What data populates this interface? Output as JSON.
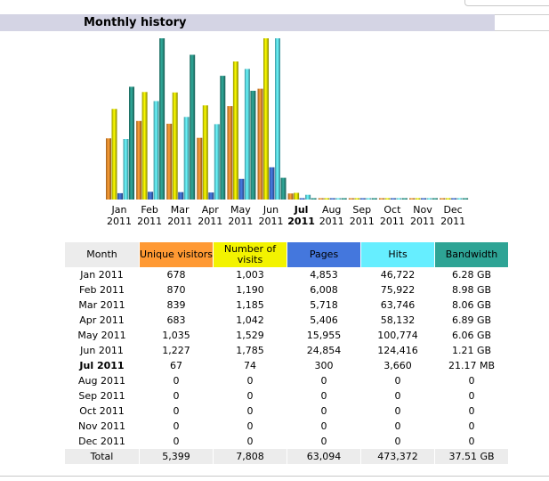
{
  "section_title": "Monthly history",
  "colors": {
    "visitors": "#ff9933",
    "visits": "#f3f300",
    "pages": "#4477dd",
    "hits": "#66eeff",
    "bandwidth": "#2ea495"
  },
  "chart_data": {
    "type": "bar",
    "categories": [
      {
        "month": "Jan",
        "year": "2011"
      },
      {
        "month": "Feb",
        "year": "2011"
      },
      {
        "month": "Mar",
        "year": "2011"
      },
      {
        "month": "Apr",
        "year": "2011"
      },
      {
        "month": "May",
        "year": "2011"
      },
      {
        "month": "Jun",
        "year": "2011"
      },
      {
        "month": "Jul",
        "year": "2011",
        "current": true
      },
      {
        "month": "Aug",
        "year": "2011"
      },
      {
        "month": "Sep",
        "year": "2011"
      },
      {
        "month": "Oct",
        "year": "2011"
      },
      {
        "month": "Nov",
        "year": "2011"
      },
      {
        "month": "Dec",
        "year": "2011"
      }
    ],
    "series": [
      {
        "name": "Unique visitors",
        "color": "#ff9933",
        "values": [
          678,
          870,
          839,
          683,
          1035,
          1227,
          67,
          0,
          0,
          0,
          0,
          0
        ]
      },
      {
        "name": "Number of visits",
        "color": "#f3f300",
        "values": [
          1003,
          1190,
          1185,
          1042,
          1529,
          1785,
          74,
          0,
          0,
          0,
          0,
          0
        ]
      },
      {
        "name": "Pages",
        "color": "#4477dd",
        "values": [
          4853,
          6008,
          5718,
          5406,
          15955,
          24854,
          300,
          0,
          0,
          0,
          0,
          0
        ]
      },
      {
        "name": "Hits",
        "color": "#66eeff",
        "values": [
          46722,
          75922,
          63746,
          58132,
          100774,
          124416,
          3660,
          0,
          0,
          0,
          0,
          0
        ]
      },
      {
        "name": "Bandwidth",
        "color": "#2ea495",
        "values_gb": [
          6.28,
          8.98,
          8.06,
          6.89,
          6.06,
          1.21,
          0.0207,
          0,
          0,
          0,
          0,
          0
        ]
      }
    ],
    "scale_groups": [
      [
        "Unique visitors",
        "Number of visits"
      ],
      [
        "Pages",
        "Hits"
      ],
      [
        "Bandwidth"
      ]
    ]
  },
  "table": {
    "headers": {
      "month": "Month",
      "visitors": "Unique visitors",
      "visits": "Number of visits",
      "pages": "Pages",
      "hits": "Hits",
      "bandwidth": "Bandwidth"
    },
    "rows": [
      {
        "month": "Jan 2011",
        "visitors": "678",
        "visits": "1,003",
        "pages": "4,853",
        "hits": "46,722",
        "bandwidth": "6.28 GB"
      },
      {
        "month": "Feb 2011",
        "visitors": "870",
        "visits": "1,190",
        "pages": "6,008",
        "hits": "75,922",
        "bandwidth": "8.98 GB"
      },
      {
        "month": "Mar 2011",
        "visitors": "839",
        "visits": "1,185",
        "pages": "5,718",
        "hits": "63,746",
        "bandwidth": "8.06 GB"
      },
      {
        "month": "Apr 2011",
        "visitors": "683",
        "visits": "1,042",
        "pages": "5,406",
        "hits": "58,132",
        "bandwidth": "6.89 GB"
      },
      {
        "month": "May 2011",
        "visitors": "1,035",
        "visits": "1,529",
        "pages": "15,955",
        "hits": "100,774",
        "bandwidth": "6.06 GB"
      },
      {
        "month": "Jun 2011",
        "visitors": "1,227",
        "visits": "1,785",
        "pages": "24,854",
        "hits": "124,416",
        "bandwidth": "1.21 GB"
      },
      {
        "month": "Jul 2011",
        "visitors": "67",
        "visits": "74",
        "pages": "300",
        "hits": "3,660",
        "bandwidth": "21.17 MB",
        "current": true
      },
      {
        "month": "Aug 2011",
        "visitors": "0",
        "visits": "0",
        "pages": "0",
        "hits": "0",
        "bandwidth": "0"
      },
      {
        "month": "Sep 2011",
        "visitors": "0",
        "visits": "0",
        "pages": "0",
        "hits": "0",
        "bandwidth": "0"
      },
      {
        "month": "Oct 2011",
        "visitors": "0",
        "visits": "0",
        "pages": "0",
        "hits": "0",
        "bandwidth": "0"
      },
      {
        "month": "Nov 2011",
        "visitors": "0",
        "visits": "0",
        "pages": "0",
        "hits": "0",
        "bandwidth": "0"
      },
      {
        "month": "Dec 2011",
        "visitors": "0",
        "visits": "0",
        "pages": "0",
        "hits": "0",
        "bandwidth": "0"
      }
    ],
    "total": {
      "month": "Total",
      "visitors": "5,399",
      "visits": "7,808",
      "pages": "63,094",
      "hits": "473,372",
      "bandwidth": "37.51 GB"
    }
  }
}
